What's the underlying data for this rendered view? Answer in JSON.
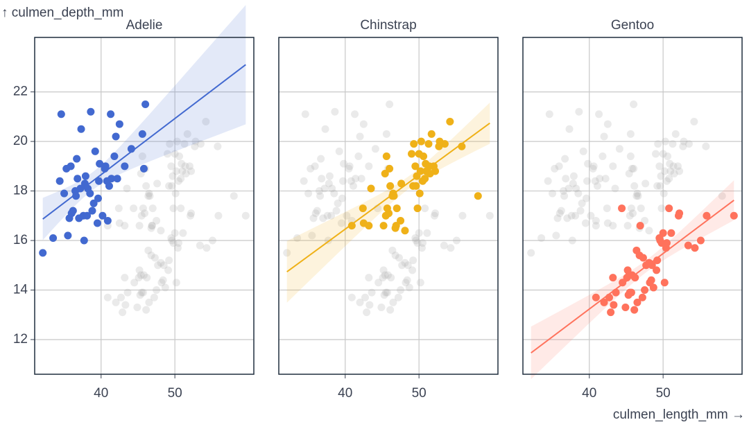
{
  "chart_data": {
    "type": "scatter",
    "x_label": "culmen_length_mm →",
    "y_label": "↑ culmen_depth_mm",
    "xlim": [
      31,
      60.7
    ],
    "xticks": [
      40,
      50
    ],
    "ylim": [
      10.6,
      24.2
    ],
    "yticks": [
      12,
      14,
      16,
      18,
      20,
      22
    ],
    "grid": true,
    "facet": "series",
    "regression": "linear",
    "background_color": "#aaaaaa",
    "series": [
      {
        "name": "Adelie",
        "color": "#4269d0",
        "x": [
          32.1,
          33.5,
          34.6,
          35.0,
          35.3,
          35.7,
          35.9,
          36.0,
          36.2,
          36.5,
          36.6,
          36.7,
          37.0,
          37.2,
          37.3,
          37.6,
          37.8,
          37.9,
          38.1,
          38.2,
          38.5,
          38.6,
          38.8,
          39.0,
          39.2,
          39.5,
          39.6,
          39.7,
          40.2,
          40.5,
          40.6,
          40.9,
          41.1,
          41.4,
          41.8,
          42.0,
          42.2,
          42.5,
          43.2,
          44.1,
          45.6,
          46.0,
          34.4,
          36.8,
          39.8,
          35.5,
          37.7,
          41.3,
          45.8,
          40.8
        ],
        "values": [
          15.5,
          16.1,
          21.1,
          17.9,
          18.9,
          16.9,
          19.0,
          17.1,
          17.2,
          18.0,
          17.8,
          19.3,
          16.9,
          18.1,
          20.5,
          17.0,
          18.3,
          18.6,
          17.0,
          18.1,
          17.9,
          21.2,
          17.2,
          17.5,
          19.6,
          16.7,
          17.7,
          18.4,
          17.0,
          18.9,
          19.0,
          16.8,
          18.2,
          18.5,
          19.4,
          20.2,
          18.5,
          20.7,
          19.0,
          19.7,
          20.3,
          21.5,
          18.4,
          18.5,
          19.1,
          16.2,
          16.0,
          21.1,
          18.9,
          18.4
        ]
      },
      {
        "name": "Chinstrap",
        "color": "#efb118",
        "x": [
          40.9,
          42.4,
          42.5,
          43.2,
          43.5,
          45.2,
          45.4,
          45.5,
          45.6,
          45.7,
          45.9,
          46.0,
          46.1,
          46.4,
          46.5,
          46.6,
          46.8,
          46.9,
          47.5,
          47.6,
          48.1,
          49.0,
          49.2,
          49.5,
          49.6,
          49.7,
          49.8,
          50.0,
          50.1,
          50.2,
          50.3,
          50.5,
          50.6,
          50.8,
          50.9,
          51.0,
          51.3,
          51.4,
          51.5,
          51.7,
          52.0,
          52.2,
          52.7,
          53.5,
          54.2,
          55.8,
          58.0,
          49.3,
          47.0,
          52.8
        ],
        "values": [
          16.6,
          17.3,
          16.7,
          16.6,
          18.1,
          16.6,
          18.7,
          17.0,
          19.4,
          17.3,
          17.1,
          18.9,
          18.2,
          17.8,
          17.9,
          17.8,
          16.5,
          16.6,
          16.8,
          18.3,
          16.4,
          19.5,
          18.2,
          19.0,
          18.2,
          18.6,
          17.3,
          19.5,
          17.9,
          18.8,
          20.0,
          18.4,
          19.4,
          18.5,
          19.1,
          18.8,
          19.9,
          19.0,
          18.7,
          20.3,
          19.0,
          18.8,
          19.8,
          19.9,
          20.8,
          19.8,
          17.8,
          19.9,
          17.3,
          20.0
        ]
      },
      {
        "name": "Gentoo",
        "color": "#ff725c",
        "x": [
          40.9,
          42.0,
          42.7,
          42.9,
          43.2,
          43.3,
          43.6,
          44.4,
          44.5,
          44.9,
          45.1,
          45.2,
          45.3,
          45.5,
          45.7,
          45.8,
          46.1,
          46.2,
          46.4,
          46.5,
          46.8,
          47.2,
          47.3,
          47.5,
          47.7,
          48.2,
          48.4,
          48.5,
          48.7,
          49.1,
          49.2,
          49.5,
          49.8,
          50.0,
          50.2,
          50.4,
          50.5,
          50.8,
          51.1,
          52.1,
          52.2,
          53.4,
          54.3,
          55.1,
          55.9,
          59.6,
          46.9,
          49.6,
          45.4,
          48.1
        ],
        "values": [
          13.7,
          13.5,
          13.7,
          13.1,
          14.5,
          13.4,
          13.9,
          17.3,
          14.3,
          13.3,
          14.5,
          14.8,
          13.8,
          13.9,
          13.9,
          14.6,
          13.2,
          14.5,
          15.6,
          13.5,
          15.4,
          13.7,
          15.3,
          14.0,
          15.0,
          14.3,
          14.4,
          15.0,
          14.1,
          14.8,
          15.2,
          16.1,
          15.9,
          16.3,
          14.3,
          15.7,
          15.9,
          17.3,
          16.3,
          17.0,
          17.1,
          15.8,
          15.7,
          16.0,
          17.0,
          17.0,
          16.6,
          16.0,
          14.6,
          15.1
        ]
      }
    ]
  }
}
